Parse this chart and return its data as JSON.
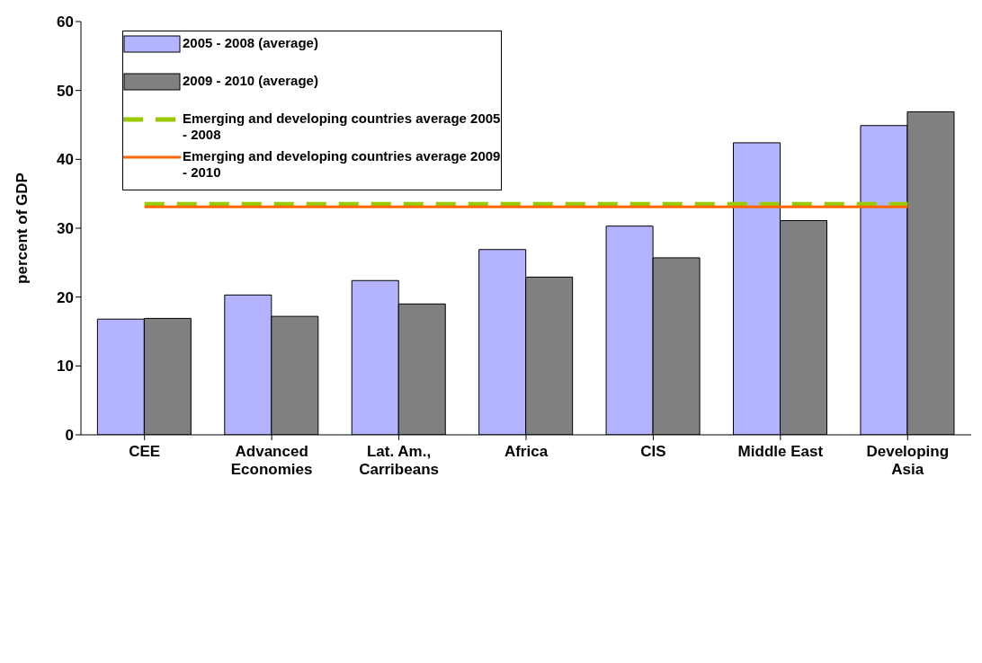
{
  "chart_data": {
    "type": "bar",
    "ylabel": "percent of GDP",
    "categories": [
      "CEE",
      "Advanced Economies",
      "Lat. Am., Carribeans",
      "Africa",
      "CIS",
      "Middle East",
      "Developing Asia"
    ],
    "series": [
      {
        "name": "2005 - 2008 (average)",
        "color": "#b3b3ff",
        "values": [
          16.8,
          20.3,
          22.4,
          26.9,
          30.3,
          42.4,
          44.9
        ]
      },
      {
        "name": "2009 - 2010 (average)",
        "color": "#808080",
        "values": [
          16.9,
          17.2,
          19.0,
          22.9,
          25.7,
          31.1,
          46.9
        ]
      },
      {
        "name": "Emerging and developing countries average 2005 - 2008",
        "type": "line",
        "line_style": "dashed",
        "color": "#99cc00",
        "values": [
          33.5,
          33.5,
          33.5,
          33.5,
          33.5,
          33.5,
          33.5
        ]
      },
      {
        "name": "Emerging and developing countries average 2009 - 2010",
        "type": "line",
        "line_style": "solid",
        "color": "#ff6600",
        "values": [
          33.1,
          33.1,
          33.1,
          33.1,
          33.1,
          33.1,
          33.1
        ]
      }
    ],
    "ylim": [
      0,
      60
    ],
    "yticks": [
      0,
      10,
      20,
      30,
      40,
      50,
      60
    ],
    "grid": false,
    "legend": "top left",
    "marker": "none"
  }
}
